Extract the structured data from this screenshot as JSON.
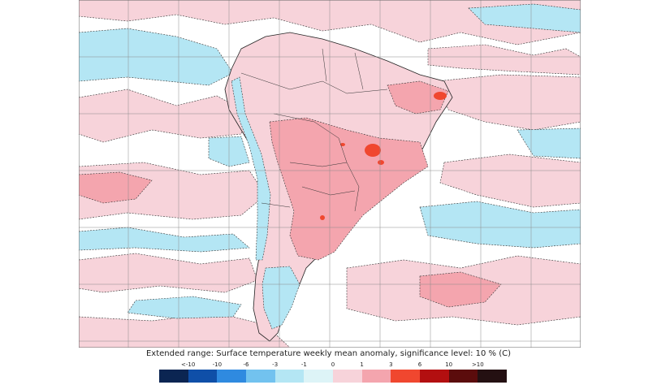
{
  "caption": "Extended range: Surface temperature weekly mean anomaly, significance level: 10 % (C)",
  "legend": {
    "labels": [
      "<-10",
      "-10",
      "-6",
      "-3",
      "-1",
      "0",
      "1",
      "3",
      "6",
      "10",
      ">10"
    ],
    "colors": [
      "#0b2552",
      "#0f4fa8",
      "#2f8ae0",
      "#72c2ef",
      "#b4e6f4",
      "#ddf4f7",
      "#f7d3da",
      "#f4a5ae",
      "#f0472f",
      "#b30f10",
      "#5b0c0c",
      "#241012"
    ]
  },
  "colors": {
    "warm_light": "#f7d3da",
    "warm_medium": "#f4a5ae",
    "warm_strong": "#f0472f",
    "cool_light": "#b4e6f4",
    "cool_medium": "#72c2ef",
    "neutral": "#ffffff"
  }
}
